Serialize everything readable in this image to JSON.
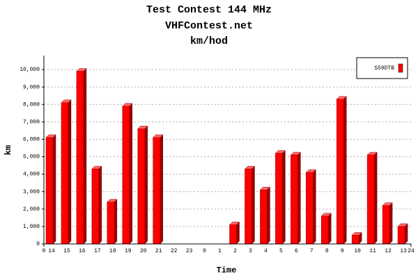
{
  "chart_data": {
    "type": "bar",
    "title": "Test Contest 144 MHz",
    "subtitle": "VHFContest.net",
    "subtitle2": "km/hod",
    "y_label": "km",
    "x_label": "Time",
    "categories": [
      "14",
      "15",
      "16",
      "17",
      "18",
      "19",
      "20",
      "21",
      "22",
      "23",
      "0",
      "1",
      "2",
      "3",
      "4",
      "5",
      "6",
      "7",
      "8",
      "9",
      "10",
      "11",
      "12",
      "13"
    ],
    "series": [
      {
        "name": "S59DTB",
        "color": "#ff0000",
        "values": [
          6100,
          8100,
          9900,
          4300,
          2400,
          7900,
          6600,
          6100,
          0,
          0,
          0,
          0,
          1100,
          4300,
          3100,
          5200,
          5100,
          4100,
          1600,
          8300,
          500,
          5100,
          2200,
          1000
        ]
      }
    ],
    "ylim": [
      0,
      10800
    ],
    "yticks": [
      0,
      {
        "value": 1000,
        "label": "1,000"
      },
      {
        "value": 2000,
        "label": "2,000"
      },
      {
        "value": 3000,
        "label": "3,000"
      },
      {
        "value": 4000,
        "label": "4,000"
      },
      {
        "value": 5000,
        "label": "5,000"
      },
      {
        "value": 6000,
        "label": "6,000"
      },
      {
        "value": 7000,
        "label": "7,000"
      },
      {
        "value": 8000,
        "label": "8,000"
      },
      {
        "value": 9000,
        "label": "9,000"
      },
      {
        "value": 10000,
        "label": "10,000"
      }
    ],
    "xlim": [
      0,
      24
    ],
    "xticks": [
      0,
      24
    ],
    "grid": true,
    "legend": "top-right"
  }
}
